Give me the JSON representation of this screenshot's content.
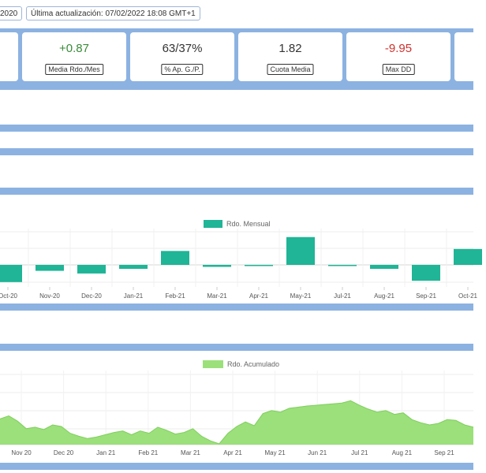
{
  "header": {
    "chip_left": "2020",
    "last_update": "Última actualización: 07/02/2022 18:08 GMT+1"
  },
  "stats": [
    {
      "value": "+0.87",
      "label": "Media Rdo./Mes",
      "tone": "pos"
    },
    {
      "value": "63/37%",
      "label": "% Ap. G./P.",
      "tone": "neutral"
    },
    {
      "value": "1.82",
      "label": "Cuota Media",
      "tone": "neutral"
    },
    {
      "value": "-9.95",
      "label": "Max DD",
      "tone": "neg"
    }
  ],
  "colors": {
    "band": "#8cb2e1",
    "monthly": "#1fb596",
    "cumulative": "#9be07b"
  },
  "chart_data": [
    {
      "type": "bar",
      "legend": "Rdo. Mensual",
      "categories": [
        "Oct-20",
        "Nov-20",
        "Dec-20",
        "Jan-21",
        "Feb-21",
        "Mar-21",
        "Apr-21",
        "May-21",
        "Jul-21",
        "Aug-21",
        "Sep-21",
        "Oct-21"
      ],
      "series": [
        {
          "name": "Rdo. Mensual",
          "values": [
            -2.6,
            -0.9,
            -1.3,
            -0.6,
            2.1,
            -0.3,
            0,
            4.2,
            -0.1,
            -0.6,
            -2.4,
            2.4
          ]
        }
      ],
      "grid": true
    },
    {
      "type": "area",
      "legend": "Rdo. Acumulado",
      "x_labels": [
        "Nov 20",
        "Dec 20",
        "Jan 21",
        "Feb 21",
        "Mar 21",
        "Apr 21",
        "May 21",
        "Jun 21",
        "Jul 21",
        "Aug 21",
        "Sep 21"
      ],
      "series": [
        {
          "name": "Rdo. Acumulado",
          "values": [
            6.8,
            7.6,
            6.2,
            4.2,
            4.6,
            4.0,
            5.2,
            4.8,
            3.0,
            2.2,
            1.6,
            2.0,
            2.6,
            3.2,
            3.6,
            2.6,
            3.6,
            3.0,
            4.6,
            3.8,
            2.8,
            3.2,
            4.2,
            2.2,
            1.0,
            0.2,
            3.0,
            4.8,
            6.0,
            5.0,
            8.2,
            9.0,
            8.6,
            9.6,
            9.9,
            10.2,
            10.4,
            10.6,
            10.8,
            11.0,
            11.6,
            10.4,
            9.4,
            8.6,
            9.0,
            8.0,
            8.4,
            6.6,
            5.8,
            5.2,
            5.6,
            6.6,
            6.4,
            5.2,
            4.6
          ]
        }
      ],
      "grid": true
    }
  ]
}
